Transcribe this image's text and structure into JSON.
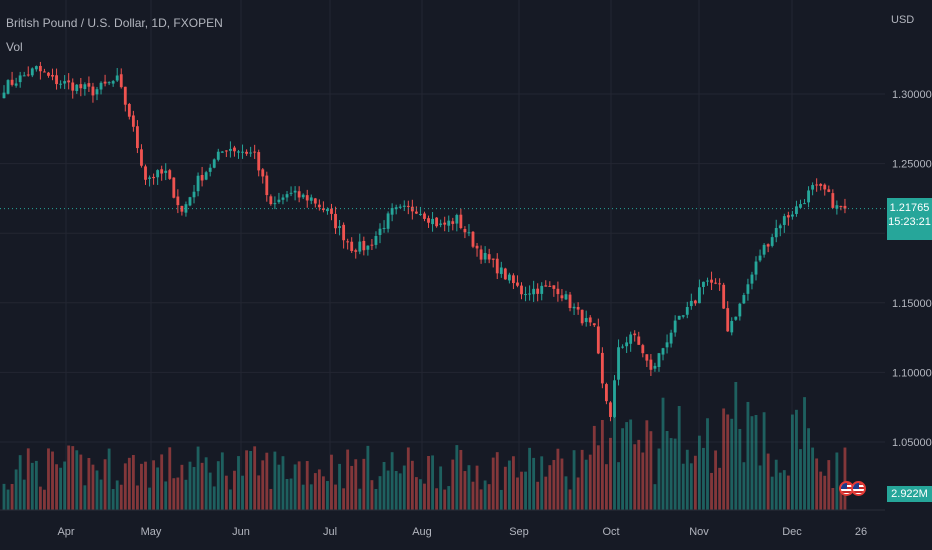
{
  "chart_data": {
    "type": "candlestick",
    "title": "British Pound / U.S. Dollar, 1D, FXOPEN",
    "volume_label": "Vol",
    "currency": "USD",
    "last_price": "1.21765",
    "countdown": "15:23:21",
    "last_volume": "2.922M",
    "ylim": [
      1.035,
      1.335
    ],
    "y_ticks": [
      "1.30000",
      "1.25000",
      "1.20000",
      "1.15000",
      "1.10000",
      "1.05000"
    ],
    "x_ticks": [
      "Apr",
      "May",
      "Jun",
      "Jul",
      "Aug",
      "Sep",
      "Oct",
      "Nov",
      "Dec",
      "26"
    ],
    "colors": {
      "up": "#26a69a",
      "down": "#ef5350",
      "background": "#161a25",
      "grid": "#232632",
      "text": "#b2b5be"
    },
    "anchors": [
      [
        0,
        1.305
      ],
      [
        8,
        1.318
      ],
      [
        12,
        1.31
      ],
      [
        22,
        1.302
      ],
      [
        28,
        1.31
      ],
      [
        31,
        1.285
      ],
      [
        35,
        1.24
      ],
      [
        40,
        1.243
      ],
      [
        44,
        1.215
      ],
      [
        48,
        1.238
      ],
      [
        55,
        1.262
      ],
      [
        62,
        1.257
      ],
      [
        66,
        1.218
      ],
      [
        70,
        1.228
      ],
      [
        76,
        1.225
      ],
      [
        80,
        1.215
      ],
      [
        86,
        1.19
      ],
      [
        90,
        1.19
      ],
      [
        96,
        1.215
      ],
      [
        102,
        1.218
      ],
      [
        108,
        1.205
      ],
      [
        112,
        1.21
      ],
      [
        118,
        1.185
      ],
      [
        122,
        1.175
      ],
      [
        128,
        1.158
      ],
      [
        132,
        1.16
      ],
      [
        137,
        1.16
      ],
      [
        142,
        1.142
      ],
      [
        146,
        1.13
      ],
      [
        148,
        1.09
      ],
      [
        150,
        1.07
      ],
      [
        152,
        1.115
      ],
      [
        155,
        1.128
      ],
      [
        158,
        1.115
      ],
      [
        160,
        1.1
      ],
      [
        165,
        1.13
      ],
      [
        168,
        1.14
      ],
      [
        171,
        1.152
      ],
      [
        173,
        1.168
      ],
      [
        177,
        1.16
      ],
      [
        179,
        1.132
      ],
      [
        182,
        1.148
      ],
      [
        187,
        1.185
      ],
      [
        192,
        1.208
      ],
      [
        196,
        1.218
      ],
      [
        200,
        1.232
      ],
      [
        203,
        1.23
      ],
      [
        206,
        1.218
      ],
      [
        208,
        1.218
      ]
    ],
    "n_candles": 209
  }
}
